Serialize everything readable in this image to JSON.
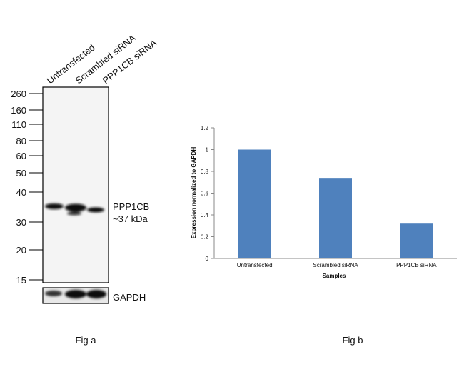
{
  "figure_a": {
    "lanes": [
      "Untransfected",
      "Scrambled siRNA",
      "PPP1CB siRNA"
    ],
    "markers": [
      "260",
      "160",
      "110",
      "80",
      "60",
      "50",
      "40",
      "30",
      "20",
      "15"
    ],
    "band_label": "PPP1CB",
    "band_size": "~37 kDa",
    "loading_label": "GAPDH",
    "caption": "Fig a"
  },
  "figure_b": {
    "caption": "Fig b"
  },
  "chart_data": {
    "type": "bar",
    "categories": [
      "Untransfected",
      "Scrambled siRNA",
      "PPP1CB siRNA"
    ],
    "values": [
      1,
      0.74,
      0.32
    ],
    "color": "#4f81bd",
    "ylim": [
      0,
      1.2
    ],
    "yticks": [
      0,
      0.2,
      0.4,
      0.6,
      0.8,
      1,
      1.2
    ],
    "y_label": "Expression normalized to GAPDH",
    "x_label": "Samples"
  }
}
